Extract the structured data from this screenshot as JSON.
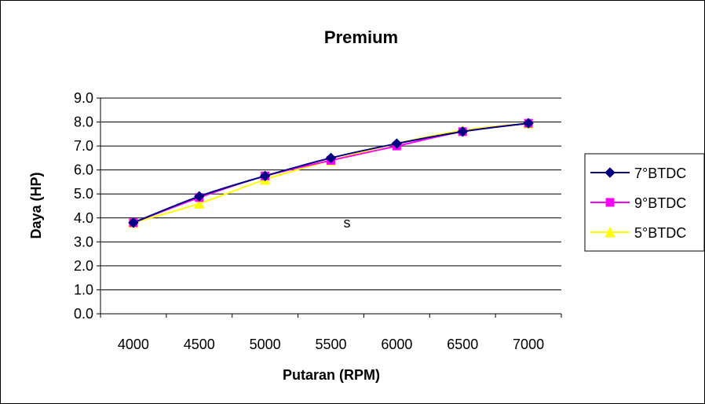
{
  "chart_data": {
    "type": "line",
    "title": "Premium",
    "xlabel": "Putaran (RPM)",
    "ylabel": "Daya (HP)",
    "categories": [
      "4000",
      "4500",
      "5000",
      "5500",
      "6000",
      "6500",
      "7000"
    ],
    "ylim": [
      0,
      9
    ],
    "yticks": [
      "0.0",
      "1.0",
      "2.0",
      "3.0",
      "4.0",
      "5.0",
      "6.0",
      "7.0",
      "8.0",
      "9.0"
    ],
    "grid": true,
    "legend_position": "right",
    "annotation": "s",
    "series": [
      {
        "name": "7°BTDC",
        "values": [
          3.8,
          4.9,
          5.75,
          6.5,
          7.1,
          7.6,
          7.95
        ],
        "color": "#000080",
        "marker": "diamond"
      },
      {
        "name": "9°BTDC",
        "values": [
          3.8,
          4.85,
          5.75,
          6.4,
          7.0,
          7.6,
          7.95
        ],
        "color": "#ff00ff",
        "marker": "square"
      },
      {
        "name": "5°BTDC",
        "values": [
          3.8,
          4.6,
          5.6,
          6.4,
          7.1,
          7.65,
          7.95
        ],
        "color": "#ffff00",
        "marker": "triangle"
      }
    ]
  }
}
